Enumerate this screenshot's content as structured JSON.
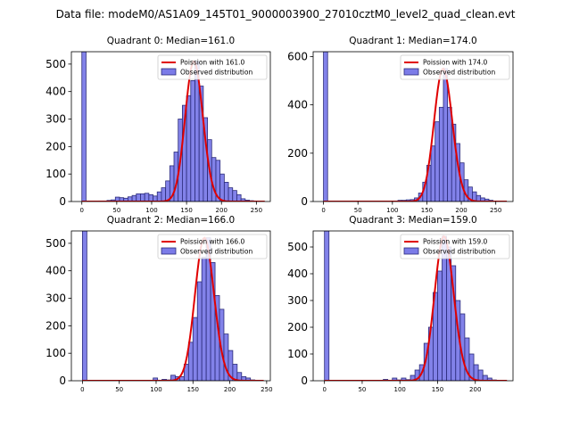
{
  "suptitle": "Data file: modeM0/AS1A09_145T01_9000003900_27010cztM0_level2_quad_clean.evt",
  "colors": {
    "bar_fill": "#7b7be8",
    "bar_edge": "#2b2b7a",
    "curve": "#e00000"
  },
  "legend": {
    "observed_label": "Observed distribution"
  },
  "chart_data": [
    {
      "type": "bar",
      "title": "Quadrant 0: Median=161.0",
      "median": 161.0,
      "curve_label": "Poission with 161.0",
      "xlim": [
        -15,
        270
      ],
      "ylim": [
        0,
        545
      ],
      "xticks": [
        0,
        50,
        100,
        150,
        200,
        250
      ],
      "yticks": [
        0,
        100,
        200,
        300,
        400,
        500
      ],
      "bin_width": 6,
      "bins": [
        [
          0,
          545
        ],
        [
          24,
          2
        ],
        [
          30,
          2
        ],
        [
          36,
          4
        ],
        [
          42,
          6
        ],
        [
          48,
          16
        ],
        [
          54,
          14
        ],
        [
          60,
          12
        ],
        [
          66,
          17
        ],
        [
          72,
          22
        ],
        [
          78,
          28
        ],
        [
          84,
          28
        ],
        [
          90,
          30
        ],
        [
          96,
          25
        ],
        [
          102,
          20
        ],
        [
          108,
          35
        ],
        [
          114,
          50
        ],
        [
          120,
          75
        ],
        [
          126,
          130
        ],
        [
          132,
          180
        ],
        [
          138,
          300
        ],
        [
          144,
          350
        ],
        [
          150,
          385
        ],
        [
          156,
          440
        ],
        [
          162,
          510
        ],
        [
          168,
          420
        ],
        [
          174,
          305
        ],
        [
          180,
          225
        ],
        [
          186,
          160
        ],
        [
          192,
          150
        ],
        [
          198,
          100
        ],
        [
          204,
          70
        ],
        [
          210,
          50
        ],
        [
          216,
          40
        ],
        [
          222,
          25
        ],
        [
          228,
          10
        ],
        [
          234,
          5
        ],
        [
          240,
          3
        ]
      ]
    },
    {
      "type": "bar",
      "title": "Quadrant 1: Median=174.0",
      "median": 174.0,
      "curve_label": "Poission with 174.0",
      "xlim": [
        -15,
        275
      ],
      "ylim": [
        0,
        620
      ],
      "xticks": [
        0,
        50,
        100,
        150,
        200,
        250
      ],
      "yticks": [
        0,
        200,
        400,
        600
      ],
      "bin_width": 6,
      "bins": [
        [
          0,
          620
        ],
        [
          102,
          2
        ],
        [
          108,
          5
        ],
        [
          114,
          5
        ],
        [
          120,
          7
        ],
        [
          126,
          8
        ],
        [
          132,
          15
        ],
        [
          138,
          35
        ],
        [
          144,
          80
        ],
        [
          150,
          150
        ],
        [
          156,
          230
        ],
        [
          162,
          330
        ],
        [
          168,
          390
        ],
        [
          174,
          550
        ],
        [
          180,
          390
        ],
        [
          186,
          320
        ],
        [
          192,
          240
        ],
        [
          198,
          160
        ],
        [
          204,
          90
        ],
        [
          210,
          60
        ],
        [
          216,
          40
        ],
        [
          222,
          25
        ],
        [
          228,
          15
        ],
        [
          234,
          10
        ],
        [
          240,
          5
        ]
      ]
    },
    {
      "type": "bar",
      "title": "Quadrant 2: Median=166.0",
      "median": 166.0,
      "curve_label": "Poission with 166.0",
      "xlim": [
        -15,
        255
      ],
      "ylim": [
        0,
        545
      ],
      "xticks": [
        0,
        50,
        100,
        150,
        200,
        250
      ],
      "yticks": [
        0,
        100,
        200,
        300,
        400,
        500
      ],
      "bin_width": 6,
      "bins": [
        [
          0,
          545
        ],
        [
          96,
          10
        ],
        [
          108,
          5
        ],
        [
          114,
          3
        ],
        [
          120,
          20
        ],
        [
          126,
          15
        ],
        [
          132,
          15
        ],
        [
          138,
          60
        ],
        [
          144,
          140
        ],
        [
          150,
          230
        ],
        [
          156,
          360
        ],
        [
          162,
          450
        ],
        [
          168,
          520
        ],
        [
          174,
          430
        ],
        [
          180,
          310
        ],
        [
          186,
          260
        ],
        [
          192,
          170
        ],
        [
          198,
          110
        ],
        [
          204,
          60
        ],
        [
          210,
          30
        ],
        [
          216,
          15
        ],
        [
          222,
          10
        ],
        [
          228,
          3
        ]
      ]
    },
    {
      "type": "bar",
      "title": "Quadrant 3: Median=159.0",
      "median": 159.0,
      "curve_label": "Poission with 159.0",
      "xlim": [
        -15,
        250
      ],
      "ylim": [
        0,
        560
      ],
      "xticks": [
        0,
        50,
        100,
        150,
        200
      ],
      "yticks": [
        0,
        100,
        200,
        300,
        400,
        500
      ],
      "bin_width": 6,
      "bins": [
        [
          0,
          560
        ],
        [
          78,
          5
        ],
        [
          90,
          10
        ],
        [
          96,
          3
        ],
        [
          102,
          10
        ],
        [
          108,
          4
        ],
        [
          114,
          20
        ],
        [
          120,
          40
        ],
        [
          126,
          60
        ],
        [
          132,
          140
        ],
        [
          138,
          200
        ],
        [
          144,
          330
        ],
        [
          150,
          410
        ],
        [
          156,
          540
        ],
        [
          162,
          500
        ],
        [
          168,
          430
        ],
        [
          174,
          300
        ],
        [
          180,
          250
        ],
        [
          186,
          160
        ],
        [
          192,
          100
        ],
        [
          198,
          60
        ],
        [
          204,
          40
        ],
        [
          210,
          20
        ],
        [
          216,
          10
        ],
        [
          222,
          3
        ]
      ]
    }
  ]
}
